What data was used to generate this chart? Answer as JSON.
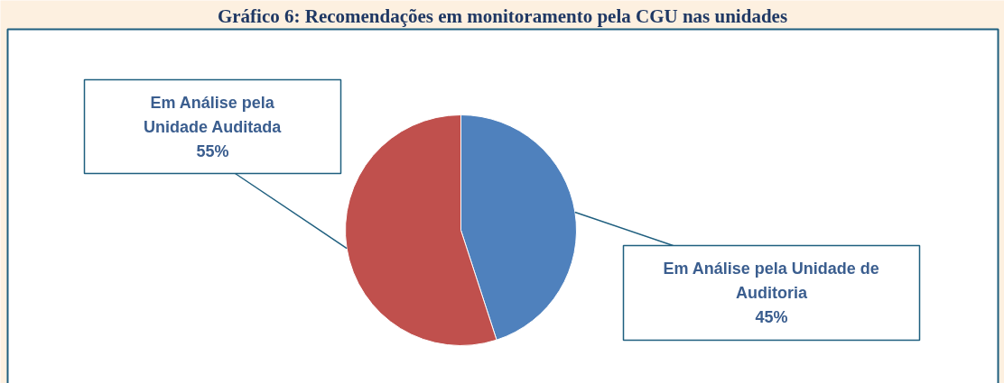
{
  "chart_data": {
    "type": "pie",
    "title": "Gráfico 6: Recomendações em monitoramento pela CGU nas unidades",
    "categories": [
      "Em Análise pela Unidade de Auditoria",
      "Em Análise pela Unidade Auditada"
    ],
    "values": [
      45,
      55
    ],
    "colors": [
      "#4f81bd",
      "#c0504d"
    ],
    "value_labels": [
      "45%",
      "55%"
    ]
  }
}
